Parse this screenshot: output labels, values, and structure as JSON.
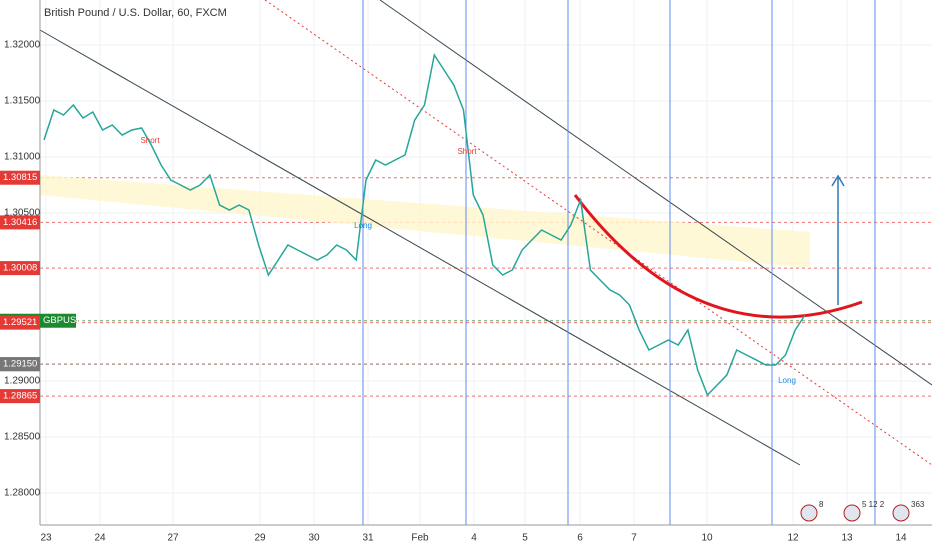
{
  "chart_data": {
    "type": "line",
    "title": "British Pound / U.S. Dollar, 60, FXCM",
    "symbol": "GBPUSD",
    "color": "#26a69a",
    "values": [
      1.31152,
      1.3142,
      1.31375,
      1.31464,
      1.31348,
      1.31402,
      1.31241,
      1.31286,
      1.31196,
      1.31241,
      1.31259,
      1.31107,
      1.30929,
      1.30795,
      1.3075,
      1.30705,
      1.3075,
      1.30839,
      1.30571,
      1.30527,
      1.30571,
      1.30527,
      1.30214,
      1.29946,
      1.3008,
      1.30214,
      1.3017,
      1.30125,
      1.3008,
      1.30125,
      1.30214,
      1.3017,
      1.3008,
      1.30795,
      1.30973,
      1.30929,
      1.30973,
      1.31018,
      1.3133,
      1.31464,
      1.31911,
      1.31777,
      1.31643,
      1.3142,
      1.30661,
      1.30482,
      1.30036,
      1.29946,
      1.29991,
      1.3017,
      1.30259,
      1.30348,
      1.30304,
      1.30259,
      1.30393,
      1.30616,
      1.29991,
      1.29902,
      1.29813,
      1.29768,
      1.29679,
      1.29455,
      1.29277,
      1.29321,
      1.29366,
      1.29321,
      1.29455,
      1.29098,
      1.28875,
      1.28964,
      1.29054,
      1.29277,
      1.29232,
      1.29188,
      1.29143,
      1.29143,
      1.29232,
      1.29455,
      1.29589
    ],
    "ylim": [
      1.27714,
      1.32402
    ],
    "yticks": [
      {
        "value": 1.32,
        "label": "1.32000"
      },
      {
        "value": 1.315,
        "label": "1.31500"
      },
      {
        "value": 1.31,
        "label": "1.31000"
      },
      {
        "value": 1.305,
        "label": "1.30500"
      },
      {
        "value": 1.29,
        "label": "1.29000"
      },
      {
        "value": 1.285,
        "label": "1.28500"
      },
      {
        "value": 1.28,
        "label": "1.28000"
      }
    ],
    "grid": true,
    "xlabels": [
      "23",
      "24",
      "27",
      "29",
      "30",
      "31",
      "Feb",
      "4",
      "5",
      "6",
      "7",
      "10",
      "12",
      "13",
      "14"
    ],
    "price_labels": [
      {
        "value": 1.30815,
        "label": "1.30815",
        "color": "#e53935"
      },
      {
        "value": 1.30416,
        "label": "1.30416",
        "color": "#e53935"
      },
      {
        "value": 1.30008,
        "label": "1.30008",
        "color": "#e53935"
      },
      {
        "value": 1.29538,
        "label": "1.29538",
        "color": "#1b8a2f"
      },
      {
        "value": 1.29521,
        "label": "1.29521",
        "color": "#e53935"
      },
      {
        "value": 1.2915,
        "label": "1.29150",
        "color": "#e53935"
      },
      {
        "value": 1.2915,
        "label": "1.29150",
        "color": "#777777"
      },
      {
        "value": 1.28865,
        "label": "1.28865",
        "color": "#e53935"
      }
    ],
    "annotations": [
      "Short",
      "Long",
      "Short",
      "Long"
    ],
    "events": [
      "8",
      "5 12 2",
      "363"
    ]
  }
}
